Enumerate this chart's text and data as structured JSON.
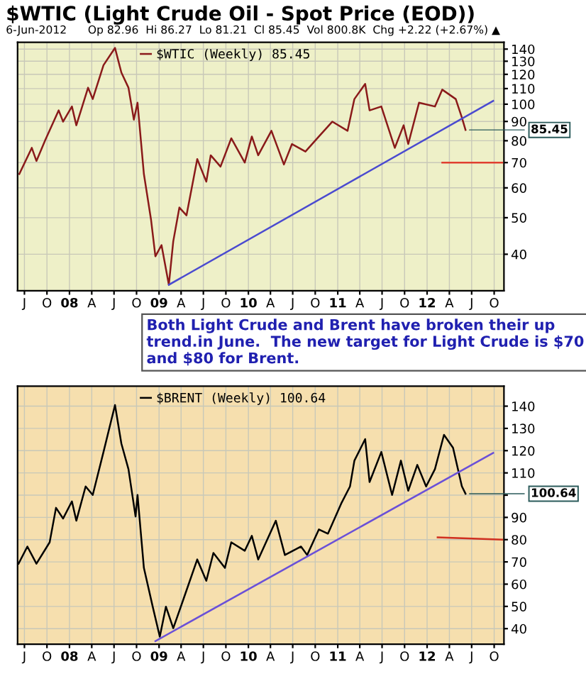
{
  "chart_data": [
    {
      "type": "line",
      "title": "$WTIC (Light Crude Oil - Spot Price (EOD))",
      "subtitle": "6-Jun-2012      Op 82.96  Hi 86.27  Lo 81.21  Cl 85.45  Vol 800.8K  Chg +2.22 (+2.67%) ▲",
      "annotations": [
        {
          "text": "85.45",
          "x": "2012-06-06",
          "y": 85.45
        },
        "Both Light Crude and Brent have broken their up trend.in June.  The new target for Light Crude is $70 and $80 for Brent."
      ],
      "log": "y",
      "grid": true,
      "legend": "top left",
      "xlim": [
        "2007-06-03",
        "2012-11-10"
      ],
      "ylim": [
        32,
        146
      ],
      "xticks": [
        {
          "value": "2007-07-01",
          "label": "J"
        },
        {
          "value": "2007-10-01",
          "label": "O"
        },
        {
          "value": "2008-01-01",
          "label": "08"
        },
        {
          "value": "2008-04-01",
          "label": "A"
        },
        {
          "value": "2008-07-01",
          "label": "J"
        },
        {
          "value": "2008-10-01",
          "label": "O"
        },
        {
          "value": "2009-01-01",
          "label": "09"
        },
        {
          "value": "2009-04-01",
          "label": "A"
        },
        {
          "value": "2009-07-01",
          "label": "J"
        },
        {
          "value": "2009-10-01",
          "label": "O"
        },
        {
          "value": "2010-01-01",
          "label": "10"
        },
        {
          "value": "2010-04-01",
          "label": "A"
        },
        {
          "value": "2010-07-01",
          "label": "J"
        },
        {
          "value": "2010-10-01",
          "label": "O"
        },
        {
          "value": "2011-01-01",
          "label": "11"
        },
        {
          "value": "2011-04-01",
          "label": "A"
        },
        {
          "value": "2011-07-01",
          "label": "J"
        },
        {
          "value": "2011-10-01",
          "label": "O"
        },
        {
          "value": "2012-01-01",
          "label": "12"
        },
        {
          "value": "2012-04-01",
          "label": "A"
        },
        {
          "value": "2012-07-01",
          "label": "J"
        },
        {
          "value": "2012-10-01",
          "label": "O"
        }
      ],
      "yticks": [
        40,
        50,
        60,
        70,
        80,
        90,
        100,
        110,
        120,
        130,
        140
      ],
      "series": [
        {
          "name": "$WTIC (Weekly) 85.45",
          "color": "#8a1a1a",
          "x": [
            "2007-06-10",
            "2007-07-31",
            "2007-08-19",
            "2007-09-24",
            "2007-11-18",
            "2007-12-06",
            "2008-01-11",
            "2008-01-29",
            "2008-03-17",
            "2008-04-05",
            "2008-05-19",
            "2008-07-05",
            "2008-07-31",
            "2008-08-29",
            "2008-09-20",
            "2008-10-05",
            "2008-10-31",
            "2008-11-29",
            "2008-12-17",
            "2009-01-11",
            "2009-02-10",
            "2009-02-28",
            "2009-03-25",
            "2009-04-23",
            "2009-06-06",
            "2009-07-13",
            "2009-07-31",
            "2009-09-09",
            "2009-10-23",
            "2009-12-17",
            "2010-01-15",
            "2010-02-10",
            "2010-04-05",
            "2010-05-26",
            "2010-06-28",
            "2010-08-22",
            "2010-10-16",
            "2010-12-10",
            "2011-02-10",
            "2011-03-10",
            "2011-04-23",
            "2011-05-11",
            "2011-06-28",
            "2011-08-22",
            "2011-09-27",
            "2011-10-16",
            "2011-11-29",
            "2012-02-02",
            "2012-03-03",
            "2012-04-27",
            "2012-05-22",
            "2012-06-06"
          ],
          "values": [
            65.3,
            76.6,
            70.7,
            80.3,
            96.3,
            89.9,
            98.6,
            87.9,
            110.6,
            103.2,
            126.9,
            141,
            121.3,
            110.6,
            91.0,
            100.9,
            65.3,
            49.5,
            39.5,
            42.3,
            33.2,
            43.3,
            53.2,
            50.7,
            71.5,
            62.3,
            73.2,
            68.3,
            81.2,
            70.0,
            82.1,
            73.2,
            85.0,
            69.2,
            78.4,
            74.9,
            82.1,
            89.9,
            85.0,
            103.2,
            113.2,
            96.3,
            98.6,
            76.6,
            87.9,
            78.4,
            100.9,
            98.6,
            109.3,
            103.2,
            92.2,
            85.45
          ]
        },
        {
          "type": "line",
          "color": "#4a4ad0",
          "x": [
            "2009-02-10",
            "2012-09-27"
          ],
          "values": [
            33.2,
            102
          ]
        },
        {
          "type": "line",
          "color": "#e04030",
          "x": [
            "2012-03-03",
            "2012-11-03"
          ],
          "values": [
            70,
            70
          ]
        }
      ]
    },
    {
      "type": "line",
      "annotations": [
        {
          "text": "100.64",
          "x": "2012-06-06",
          "y": 100.64
        }
      ],
      "grid": true,
      "legend": "top left",
      "xlim": [
        "2007-06-03",
        "2012-11-10"
      ],
      "ylim": [
        33,
        149
      ],
      "xticks": [
        {
          "value": "2007-07-01",
          "label": "J"
        },
        {
          "value": "2007-10-01",
          "label": "O"
        },
        {
          "value": "2008-01-01",
          "label": "08"
        },
        {
          "value": "2008-04-01",
          "label": "A"
        },
        {
          "value": "2008-07-01",
          "label": "J"
        },
        {
          "value": "2008-10-01",
          "label": "O"
        },
        {
          "value": "2009-01-01",
          "label": "09"
        },
        {
          "value": "2009-04-01",
          "label": "A"
        },
        {
          "value": "2009-07-01",
          "label": "J"
        },
        {
          "value": "2009-10-01",
          "label": "O"
        },
        {
          "value": "2010-01-01",
          "label": "10"
        },
        {
          "value": "2010-04-01",
          "label": "A"
        },
        {
          "value": "2010-07-01",
          "label": "J"
        },
        {
          "value": "2010-10-01",
          "label": "O"
        },
        {
          "value": "2011-01-01",
          "label": "11"
        },
        {
          "value": "2011-04-01",
          "label": "A"
        },
        {
          "value": "2011-07-01",
          "label": "J"
        },
        {
          "value": "2011-10-01",
          "label": "O"
        },
        {
          "value": "2012-01-01",
          "label": "12"
        },
        {
          "value": "2012-04-01",
          "label": "A"
        },
        {
          "value": "2012-07-01",
          "label": "J"
        },
        {
          "value": "2012-10-01",
          "label": "O"
        }
      ],
      "yticks": [
        40,
        50,
        60,
        70,
        80,
        90,
        {
          "value": 100,
          "label": null
        },
        110,
        120,
        130,
        140
      ],
      "series": [
        {
          "name": "$BRENT (Weekly) 100.64",
          "color": "#000000",
          "x": [
            "2007-06-07",
            "2007-07-13",
            "2007-08-19",
            "2007-10-12",
            "2007-11-07",
            "2007-12-06",
            "2008-01-11",
            "2008-01-29",
            "2008-03-07",
            "2008-04-05",
            "2008-05-19",
            "2008-07-05",
            "2008-07-31",
            "2008-08-29",
            "2008-09-27",
            "2008-10-05",
            "2008-10-31",
            "2008-12-06",
            "2009-01-04",
            "2009-01-29",
            "2009-02-28",
            "2009-04-12",
            "2009-06-06",
            "2009-07-13",
            "2009-08-11",
            "2009-09-27",
            "2009-10-23",
            "2009-12-17",
            "2010-01-15",
            "2010-02-10",
            "2010-04-23",
            "2010-05-30",
            "2010-08-04",
            "2010-08-29",
            "2010-10-16",
            "2010-11-22",
            "2011-01-15",
            "2011-02-20",
            "2011-03-10",
            "2011-04-23",
            "2011-05-11",
            "2011-06-28",
            "2011-08-11",
            "2011-09-16",
            "2011-10-16",
            "2011-11-22",
            "2011-12-28",
            "2012-02-02",
            "2012-03-10",
            "2012-04-16",
            "2012-05-22",
            "2012-06-06"
          ],
          "values": [
            69.2,
            76.9,
            69.2,
            78.8,
            94.3,
            89.5,
            97.2,
            88.5,
            103.9,
            100.1,
            119.4,
            140.5,
            123.2,
            111.7,
            90.4,
            100.1,
            67.3,
            49.9,
            36.4,
            49.9,
            40.2,
            53.7,
            71.1,
            61.5,
            74.0,
            67.3,
            78.8,
            75.0,
            81.7,
            71.1,
            88.5,
            73.1,
            76.9,
            73.1,
            84.6,
            82.7,
            96.2,
            103.9,
            115.5,
            125.2,
            105.9,
            119.4,
            100.1,
            115.5,
            102.0,
            113.6,
            103.9,
            111.7,
            127.1,
            121.3,
            104.0,
            100.64
          ]
        },
        {
          "type": "line",
          "color": "#6a50d8",
          "x": [
            "2008-12-17",
            "2012-09-27"
          ],
          "values": [
            34.4,
            119
          ]
        },
        {
          "type": "line",
          "color": "#d03020",
          "x": [
            "2012-02-13",
            "2012-11-03"
          ],
          "values": [
            81,
            80
          ]
        }
      ]
    }
  ]
}
